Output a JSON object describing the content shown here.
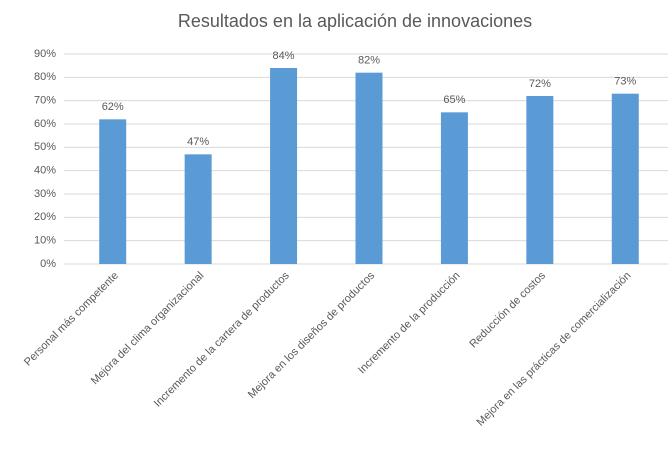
{
  "chart_data": {
    "type": "bar",
    "title": "Resultados en la aplicación de innovaciones",
    "categories": [
      "Personal más competente",
      "Mejora del clima organizacional",
      "Incremento de la cartera de productos",
      "Mejora en los diseños de productos",
      "Incremento de la producción",
      "Reducción de costos",
      "Mejora en las prácticas de comercialización"
    ],
    "values": [
      62,
      47,
      84,
      82,
      65,
      72,
      73
    ],
    "value_labels": [
      "62%",
      "47%",
      "84%",
      "82%",
      "65%",
      "72%",
      "73%"
    ],
    "color": "#5b9bd5",
    "ylim": [
      0,
      90
    ],
    "yticks": [
      {
        "value": 0,
        "label": "0%"
      },
      {
        "value": 10,
        "label": "10%"
      },
      {
        "value": 20,
        "label": "20%"
      },
      {
        "value": 30,
        "label": "30%"
      },
      {
        "value": 40,
        "label": "40%"
      },
      {
        "value": 50,
        "label": "50%"
      },
      {
        "value": 60,
        "label": "60%"
      },
      {
        "value": 70,
        "label": "70%"
      },
      {
        "value": 80,
        "label": "80%"
      },
      {
        "value": 90,
        "label": "90%"
      }
    ],
    "grid": true
  }
}
